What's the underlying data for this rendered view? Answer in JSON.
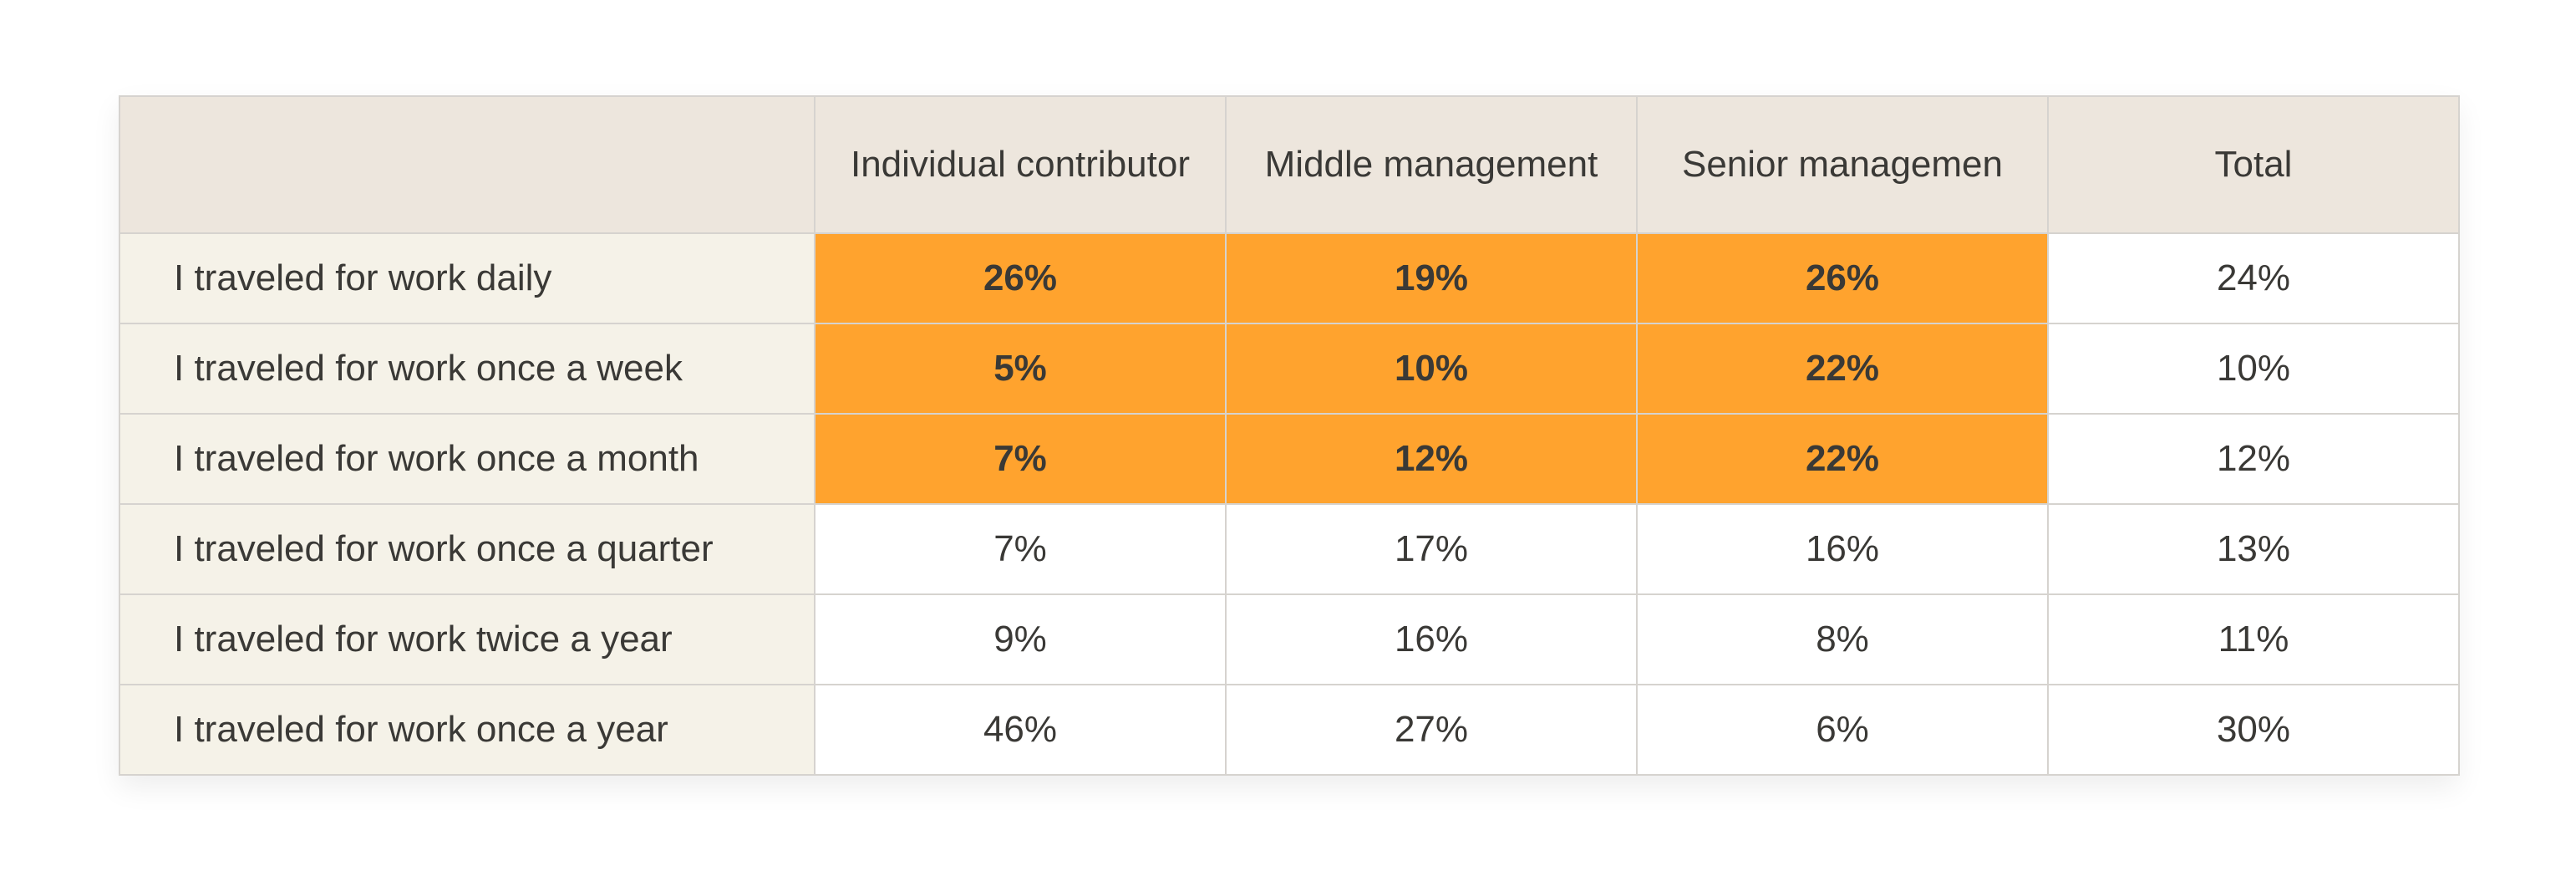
{
  "colors": {
    "header_bg": "#ede6dd",
    "row_label_bg": "#f5f2e8",
    "highlight": "#ffa32e",
    "cell_bg": "#ffffff",
    "border": "#d6d3cf",
    "text": "#3a3936"
  },
  "chart_data": {
    "type": "table",
    "columns": [
      "",
      "Individual contributor",
      "Middle management",
      "Senior managemen",
      "Total"
    ],
    "rows": [
      {
        "label": "I traveled for work daily",
        "values": [
          "26%",
          "19%",
          "26%",
          "24%"
        ],
        "highlight": [
          true,
          true,
          true,
          false
        ]
      },
      {
        "label": "I traveled for work once a week",
        "values": [
          "5%",
          "10%",
          "22%",
          "10%"
        ],
        "highlight": [
          true,
          true,
          true,
          false
        ]
      },
      {
        "label": "I traveled for work once a month",
        "values": [
          "7%",
          "12%",
          "22%",
          "12%"
        ],
        "highlight": [
          true,
          true,
          true,
          false
        ]
      },
      {
        "label": "I traveled for work once a quarter",
        "values": [
          "7%",
          "17%",
          "16%",
          "13%"
        ],
        "highlight": [
          false,
          false,
          false,
          false
        ]
      },
      {
        "label": "I traveled for work twice a year",
        "values": [
          "9%",
          "16%",
          "8%",
          "11%"
        ],
        "highlight": [
          false,
          false,
          false,
          false
        ]
      },
      {
        "label": "I traveled for work once a year",
        "values": [
          "46%",
          "27%",
          "6%",
          "30%"
        ],
        "highlight": [
          false,
          false,
          false,
          false
        ]
      }
    ]
  }
}
